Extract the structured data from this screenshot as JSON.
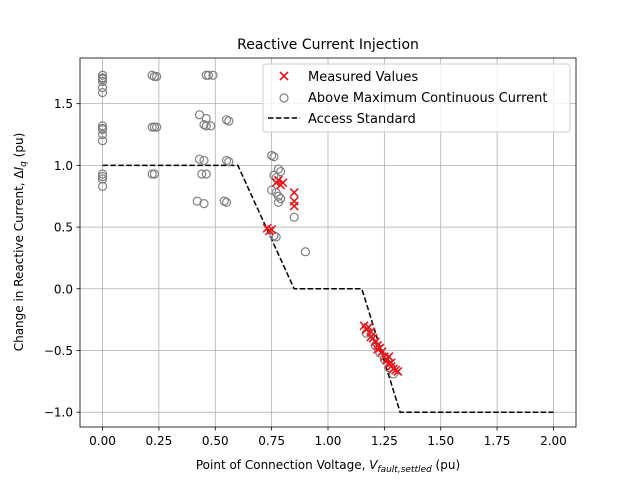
{
  "chart_data": {
    "type": "scatter",
    "title": "Reactive Current Injection",
    "xlabel": {
      "prefix": "Point of Connection Voltage, ",
      "var": "V",
      "sub": "fault,settled",
      "suffix": " (pu)"
    },
    "ylabel": {
      "prefix": "Change in Reactive Current, Δ",
      "var": "I",
      "sub": "q",
      "suffix": " (pu)"
    },
    "xlim": [
      -0.1,
      2.1
    ],
    "ylim": [
      -1.12,
      1.87
    ],
    "x_ticks": [
      0.0,
      0.25,
      0.5,
      0.75,
      1.0,
      1.25,
      1.5,
      1.75,
      2.0
    ],
    "x_tick_labels": [
      "0.00",
      "0.25",
      "0.50",
      "0.75",
      "1.00",
      "1.25",
      "1.50",
      "1.75",
      "2.00"
    ],
    "y_ticks": [
      -1.0,
      -0.5,
      0.0,
      0.5,
      1.0,
      1.5
    ],
    "y_tick_labels": [
      "−1.0",
      "−0.5",
      "0.0",
      "0.5",
      "1.0",
      "1.5"
    ],
    "grid": true,
    "legend_position": "top-right",
    "series": [
      {
        "name": "Measured Values",
        "marker": "x",
        "color": "#e8161b",
        "points": [
          [
            0.73,
            0.49
          ],
          [
            0.74,
            0.47
          ],
          [
            0.75,
            0.48
          ],
          [
            0.77,
            0.86
          ],
          [
            0.78,
            0.88
          ],
          [
            0.79,
            0.84
          ],
          [
            0.8,
            0.86
          ],
          [
            0.85,
            0.78
          ],
          [
            0.85,
            0.71
          ],
          [
            0.85,
            0.67
          ],
          [
            1.16,
            -0.3
          ],
          [
            1.17,
            -0.33
          ],
          [
            1.18,
            -0.31
          ],
          [
            1.19,
            -0.35
          ],
          [
            1.19,
            -0.39
          ],
          [
            1.2,
            -0.4
          ],
          [
            1.21,
            -0.43
          ],
          [
            1.22,
            -0.46
          ],
          [
            1.22,
            -0.49
          ],
          [
            1.23,
            -0.48
          ],
          [
            1.24,
            -0.51
          ],
          [
            1.25,
            -0.55
          ],
          [
            1.26,
            -0.58
          ],
          [
            1.27,
            -0.55
          ],
          [
            1.27,
            -0.61
          ],
          [
            1.28,
            -0.6
          ],
          [
            1.28,
            -0.63
          ],
          [
            1.29,
            -0.65
          ],
          [
            1.3,
            -0.66
          ],
          [
            1.31,
            -0.67
          ]
        ]
      },
      {
        "name": "Above Maximum Continuous Current",
        "marker": "o",
        "color": "#808080",
        "points": [
          [
            0.0,
            1.73
          ],
          [
            0.0,
            1.71
          ],
          [
            0.0,
            1.7
          ],
          [
            0.0,
            1.68
          ],
          [
            0.0,
            1.63
          ],
          [
            0.0,
            1.59
          ],
          [
            0.0,
            1.32
          ],
          [
            0.0,
            1.3
          ],
          [
            0.0,
            1.29
          ],
          [
            0.0,
            1.25
          ],
          [
            0.0,
            1.2
          ],
          [
            0.0,
            0.93
          ],
          [
            0.0,
            0.91
          ],
          [
            0.0,
            0.89
          ],
          [
            0.0,
            0.83
          ],
          [
            0.22,
            1.73
          ],
          [
            0.23,
            1.72
          ],
          [
            0.24,
            1.72
          ],
          [
            0.22,
            1.31
          ],
          [
            0.23,
            1.31
          ],
          [
            0.24,
            1.31
          ],
          [
            0.22,
            0.93
          ],
          [
            0.23,
            0.93
          ],
          [
            0.46,
            1.73
          ],
          [
            0.47,
            1.73
          ],
          [
            0.49,
            1.73
          ],
          [
            0.43,
            1.41
          ],
          [
            0.46,
            1.38
          ],
          [
            0.45,
            1.33
          ],
          [
            0.46,
            1.32
          ],
          [
            0.48,
            1.32
          ],
          [
            0.55,
            1.37
          ],
          [
            0.56,
            1.36
          ],
          [
            0.43,
            1.05
          ],
          [
            0.45,
            1.04
          ],
          [
            0.44,
            0.93
          ],
          [
            0.46,
            0.93
          ],
          [
            0.55,
            1.04
          ],
          [
            0.56,
            1.03
          ],
          [
            0.42,
            0.71
          ],
          [
            0.45,
            0.69
          ],
          [
            0.54,
            0.71
          ],
          [
            0.55,
            0.7
          ],
          [
            0.75,
            1.08
          ],
          [
            0.76,
            1.07
          ],
          [
            0.78,
            0.97
          ],
          [
            0.79,
            0.95
          ],
          [
            0.76,
            0.92
          ],
          [
            0.77,
            0.9
          ],
          [
            0.75,
            0.8
          ],
          [
            0.77,
            0.78
          ],
          [
            0.78,
            0.75
          ],
          [
            0.79,
            0.73
          ],
          [
            0.78,
            0.7
          ],
          [
            0.76,
            0.43
          ],
          [
            0.77,
            0.42
          ],
          [
            0.85,
            0.58
          ],
          [
            0.9,
            0.3
          ],
          [
            1.17,
            -0.36
          ],
          [
            1.21,
            -0.46
          ],
          [
            1.23,
            -0.52
          ],
          [
            1.25,
            -0.57
          ],
          [
            1.27,
            -0.64
          ],
          [
            1.29,
            -0.69
          ]
        ]
      }
    ],
    "reference_line": {
      "name": "Access Standard",
      "color": "#000000",
      "dash": "dashed",
      "points": [
        [
          0.0,
          1.0
        ],
        [
          0.6,
          1.0
        ],
        [
          0.85,
          0.0
        ],
        [
          1.15,
          0.0
        ],
        [
          1.32,
          -1.0
        ],
        [
          2.0,
          -1.0
        ]
      ]
    },
    "legend": [
      {
        "label": "Measured Values",
        "marker": "x"
      },
      {
        "label": "Above Maximum Continuous Current",
        "marker": "o"
      },
      {
        "label": "Access Standard",
        "marker": "dashed-line"
      }
    ]
  }
}
